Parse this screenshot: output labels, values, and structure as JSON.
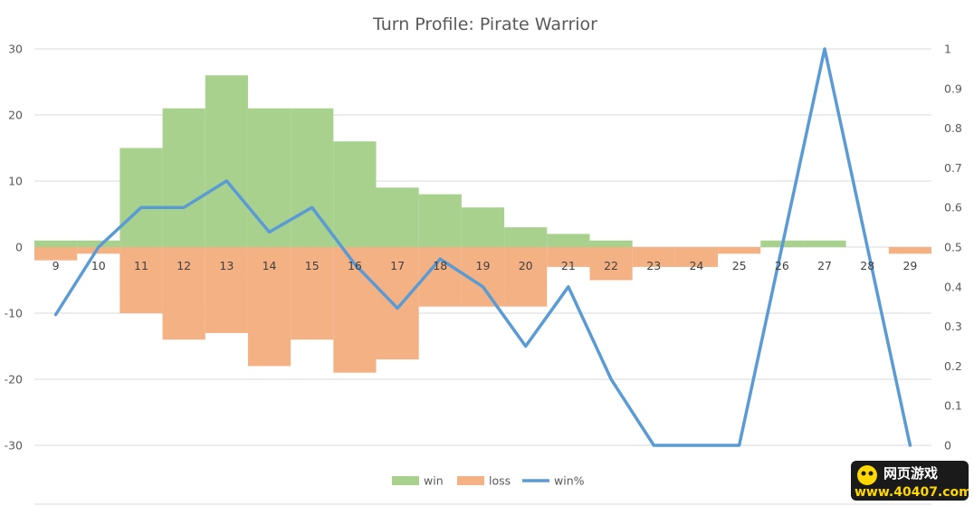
{
  "chart_data": {
    "type": "bar",
    "title": "Turn Profile: Pirate Warrior",
    "categories": [
      "9",
      "10",
      "11",
      "12",
      "13",
      "14",
      "15",
      "16",
      "17",
      "18",
      "19",
      "20",
      "21",
      "22",
      "23",
      "24",
      "25",
      "26",
      "27",
      "28",
      "29"
    ],
    "series": [
      {
        "name": "win",
        "type": "bar",
        "axis": "left",
        "color": "#a9d18e",
        "values": [
          1,
          1,
          15,
          21,
          26,
          21,
          21,
          16,
          9,
          8,
          6,
          3,
          2,
          1,
          0,
          0,
          0,
          1,
          1,
          0,
          0
        ]
      },
      {
        "name": "loss",
        "type": "bar",
        "axis": "left",
        "color": "#f4b183",
        "values": [
          -2,
          -1,
          -10,
          -14,
          -13,
          -18,
          -14,
          -19,
          -17,
          -9,
          -9,
          -9,
          -3,
          -5,
          -3,
          -3,
          -1,
          0,
          0,
          0,
          -1
        ]
      },
      {
        "name": "win%",
        "type": "line",
        "axis": "right",
        "color": "#5b9bd5",
        "values": [
          0.33,
          0.5,
          0.6,
          0.6,
          0.667,
          0.538,
          0.6,
          0.457,
          0.346,
          0.47,
          0.4,
          0.25,
          0.4,
          0.167,
          0,
          0,
          0,
          0.5,
          1,
          0.5,
          0
        ]
      }
    ],
    "y_left": {
      "min": -30,
      "max": 30,
      "ticks": [
        "30",
        "20",
        "10",
        "0",
        "-10",
        "-20",
        "-30"
      ]
    },
    "y_right": {
      "min": 0,
      "max": 1,
      "ticks": [
        "1",
        "0.9",
        "0.8",
        "0.7",
        "0.6",
        "0.5",
        "0.4",
        "0.3",
        "0.2",
        "0.1",
        "0"
      ]
    },
    "grid": true,
    "legend_position": "bottom"
  },
  "watermark": {
    "line1": "网页游戏",
    "line2": "www.40407.com"
  }
}
